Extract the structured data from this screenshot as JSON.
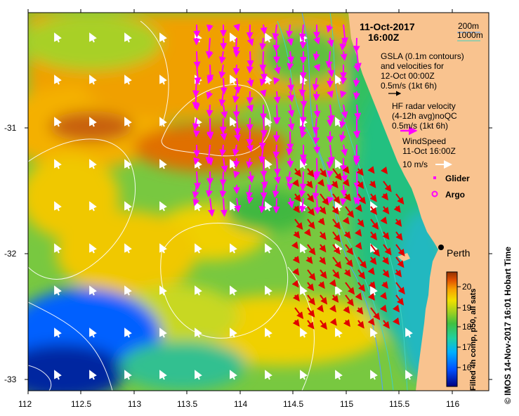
{
  "map": {
    "date_title": "11-Oct-2017",
    "time_title": "16:00Z",
    "bathy_200": "200m",
    "bathy_1000": "1000m",
    "gsla_line1": "GSLA (0.1m contours)",
    "gsla_line2": "and velocities for",
    "gsla_line3": "12-Oct 00:00Z",
    "gsla_scale": "0.5m/s (1kt 6h)",
    "hf_line1": "HF radar velocity",
    "hf_line2": "(4-12h avg)noQC",
    "hf_scale": "0.5m/s (1kt 6h)",
    "wind_line1": "WindSpeed",
    "wind_line2": "11-Oct 16:00Z",
    "wind_scale": "10 m/s",
    "glider_label": "Glider",
    "argo_label": "Argo",
    "city_label": "Perth",
    "credit": "© IMOS 14-Nov-2017 16:01 Hobart Time",
    "colorbar_title": "Filled 4h comp, p50, all sats",
    "colorbar_ticks": [
      "16",
      "17",
      "18",
      "19",
      "20"
    ],
    "x_ticks": [
      "112",
      "112.5",
      "113",
      "113.5",
      "114",
      "114.5",
      "115",
      "115.5",
      "116"
    ],
    "y_ticks": [
      "-31",
      "-32",
      "-33"
    ],
    "colors": {
      "land": "#f9c38f",
      "hf_arrow": "#ff00ff",
      "radar_arrow": "#e00000",
      "wind_arrow": "#ffffff",
      "bathy_200": "#50a0ff",
      "bathy_1000": "#40d0c0"
    }
  }
}
